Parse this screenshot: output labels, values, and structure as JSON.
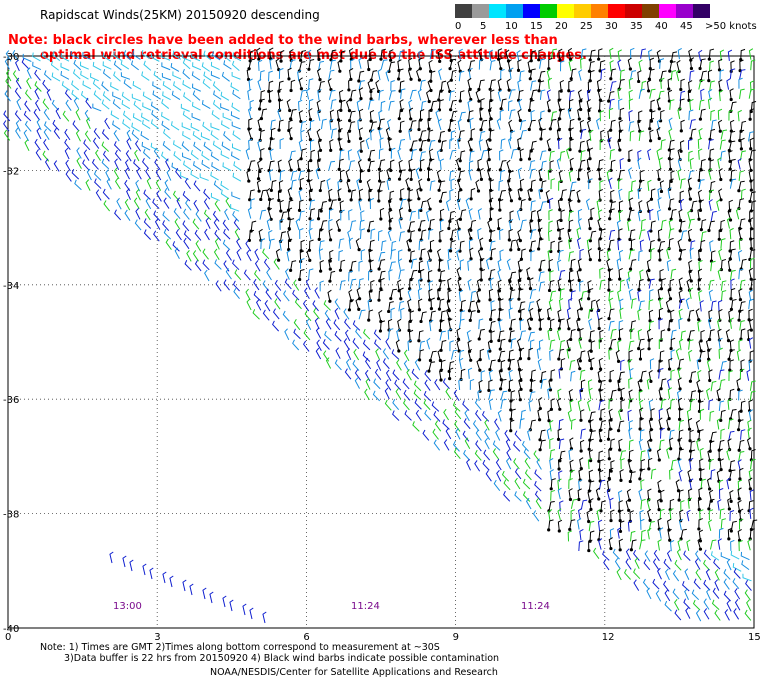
{
  "title": "Rapidscat Winds(25KM) 20150920 descending",
  "note": {
    "line1": "Note: black circles have been added to the wind barbs, wherever less than",
    "line2": "optimal wind retrieval conditions are met due to the ISS attitude changes."
  },
  "colorbar": {
    "labels": [
      "0",
      "5",
      "10",
      "15",
      "20",
      "25",
      "30",
      "35",
      "40",
      "45",
      ">50 knots"
    ],
    "colors": [
      "#404040",
      "#9a9a9a",
      "#00e5ff",
      "#00a0f0",
      "#0000ff",
      "#00cc00",
      "#ffff00",
      "#ffcc00",
      "#ff8000",
      "#ff0000",
      "#cc0000",
      "#804000",
      "#ff00ff",
      "#9900cc",
      "#330066"
    ]
  },
  "axes": {
    "y_labels": [
      "-30",
      "-32",
      "-34",
      "-36",
      "-38",
      "-40"
    ],
    "x_labels": [
      "0",
      "3",
      "6",
      "9",
      "12",
      "15"
    ]
  },
  "time_labels": [
    "13:00",
    "11:24",
    "11:24"
  ],
  "footnotes": {
    "line1": "Note: 1) Times are GMT 2)Times along bottom correspond to measurement at ~30S",
    "line2": "3)Data buffer is 22 hrs from 20150920 4) Black wind barbs indicate possible contamination",
    "line3": "NOAA/NESDIS/Center for Satellite Applications and Research"
  },
  "map_data": {
    "lat_range": [
      -40,
      -30
    ],
    "lon_range": [
      0,
      15
    ],
    "grid": "dotted",
    "barb_colors": {
      "light": "#35c8e8",
      "mid": "#1a8fe0",
      "dark": "#1020d0",
      "green": "#22cc22",
      "black": "#000000",
      "yellow": "#ffff00"
    }
  }
}
